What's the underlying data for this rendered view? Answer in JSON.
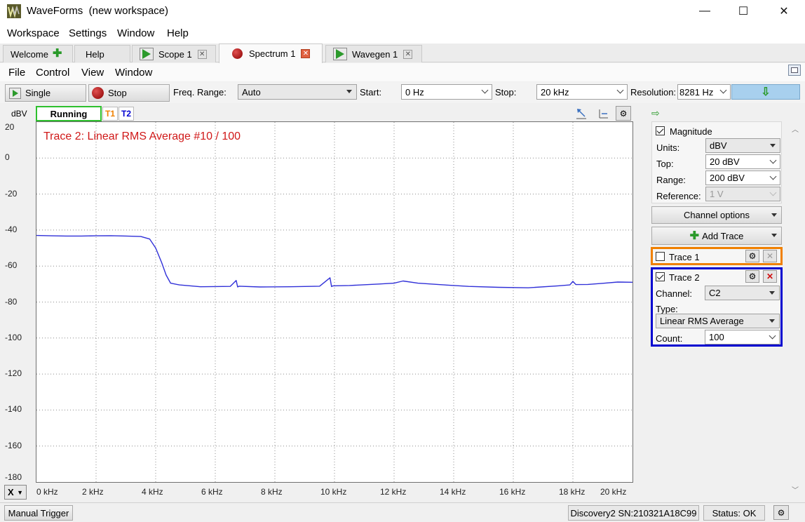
{
  "window": {
    "app_name": "WaveForms",
    "workspace": "(new workspace)",
    "controls": {
      "minimize": "—",
      "maximize": "☐",
      "close": "✕"
    }
  },
  "menubar": [
    "Workspace",
    "Settings",
    "Window",
    "Help"
  ],
  "tabs": [
    {
      "label": "Welcome",
      "icon": "plus-icon"
    },
    {
      "label": "Help"
    },
    {
      "label": "Scope 1",
      "icon": "play-icon"
    },
    {
      "label": "Spectrum 1",
      "icon": "stop-icon",
      "active": true
    },
    {
      "label": "Wavegen 1",
      "icon": "play-icon"
    }
  ],
  "inner_menu": [
    "File",
    "Control",
    "View",
    "Window"
  ],
  "toolbar": {
    "single_label": "Single",
    "stop_label": "Stop",
    "freq_range_label": "Freq. Range:",
    "freq_range_value": "Auto",
    "start_label": "Start:",
    "start_value": "0 Hz",
    "stop_freq_label": "Stop:",
    "stop_freq_value": "20 kHz",
    "resolution_label": "Resolution:",
    "resolution_value": "8281 Hz",
    "download_icon": "down-arrow-icon"
  },
  "plot_header": {
    "unit": "dBV",
    "status": "Running",
    "t1": "T1",
    "t2": "T2"
  },
  "chart_data": {
    "type": "line",
    "title": "Trace 2: Linear RMS Average #10 / 100",
    "xlabel": "",
    "ylabel": "dBV",
    "xlim": [
      0,
      20
    ],
    "ylim": [
      -180,
      20
    ],
    "x_ticks": [
      "0 kHz",
      "2 kHz",
      "4 kHz",
      "6 kHz",
      "8 kHz",
      "10 kHz",
      "12 kHz",
      "14 kHz",
      "16 kHz",
      "18 kHz",
      "20 kHz"
    ],
    "y_ticks": [
      "20",
      "0",
      "-20",
      "-40",
      "-60",
      "-80",
      "-100",
      "-120",
      "-140",
      "-160",
      "-180"
    ],
    "grid": true,
    "series": [
      {
        "color": "#3030d8",
        "x": [
          0,
          0.5,
          1,
          1.5,
          2,
          2.5,
          3,
          3.5,
          3.8,
          4.0,
          4.2,
          4.35,
          4.5,
          4.8,
          5.5,
          6.5,
          6.7,
          6.75,
          6.8,
          7.5,
          8.5,
          9.5,
          9.85,
          9.9,
          9.95,
          10.5,
          11.5,
          12.0,
          12.3,
          12.8,
          13.5,
          14.5,
          15.5,
          16.5,
          17.5,
          17.9,
          18.0,
          18.1,
          18.5,
          19.0,
          19.5,
          20.0
        ],
        "y": [
          -43,
          -43.2,
          -43.3,
          -43.3,
          -43.2,
          -43.1,
          -43.3,
          -43.6,
          -45,
          -50,
          -58,
          -65,
          -69.5,
          -70.5,
          -71.5,
          -71.3,
          -68,
          -71.6,
          -71.2,
          -71.6,
          -71.5,
          -71.2,
          -66.5,
          -71.4,
          -71,
          -70.8,
          -70,
          -69.5,
          -68.3,
          -69.5,
          -70.3,
          -71.3,
          -71.8,
          -72.1,
          -71,
          -70.5,
          -68.5,
          -70.3,
          -70.2,
          -69.6,
          -68.9,
          -69
        ]
      }
    ]
  },
  "x_unit_selector": "X",
  "right_panel": {
    "magnitude_label": "Magnitude",
    "units_label": "Units:",
    "units_value": "dBV",
    "top_label": "Top:",
    "top_value": "20 dBV",
    "range_label": "Range:",
    "range_value": "200 dBV",
    "reference_label": "Reference:",
    "reference_value": "1 V",
    "channel_options_label": "Channel options",
    "add_trace_label": "Add Trace",
    "trace1": {
      "label": "Trace 1",
      "color": "#f08000"
    },
    "trace2": {
      "label": "Trace 2",
      "color": "#0000d0",
      "channel_label": "Channel:",
      "channel_value": "C2",
      "type_label": "Type:",
      "type_value": "Linear RMS Average",
      "count_label": "Count:",
      "count_value": "100"
    }
  },
  "statusbar": {
    "manual_trigger_label": "Manual Trigger",
    "device": "Discovery2 SN:210321A18C99",
    "status": "Status: OK"
  }
}
